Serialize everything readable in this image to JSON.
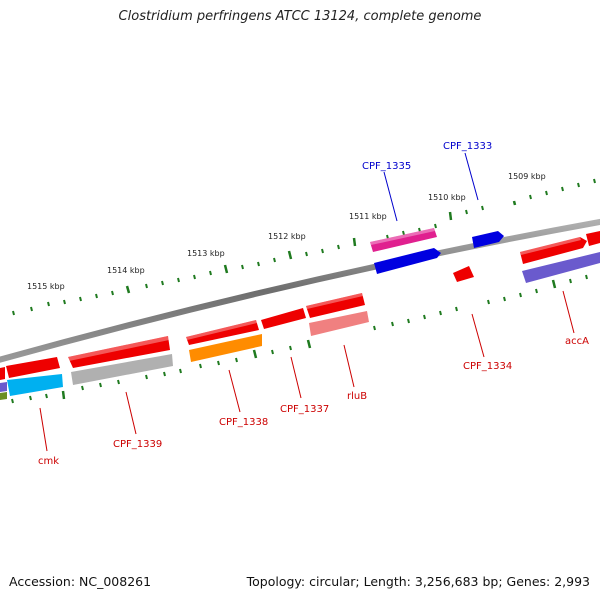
{
  "title": "Clostridium perfringens ATCC 13124, complete genome",
  "accession": "Accession: NC_008261",
  "topology": "Topology: circular; Length: 3,256,683 bp; Genes: 2,993",
  "colors": {
    "backbone": "#7a7a7a",
    "tick": "#1f7a1f",
    "label_forward": "#0000cc",
    "label_reverse": "#cc0000"
  },
  "tick_labels": [
    "1515 kbp",
    "1514 kbp",
    "1513 kbp",
    "1512 kbp",
    "1511 kbp",
    "1510 kbp",
    "1509 kbp"
  ],
  "genes_labels": [
    "CPF_1335",
    "CPF_1333",
    "CPF_1334",
    "accA",
    "rluB",
    "CPF_1337",
    "CPF_1338",
    "CPF_1339",
    "cmk"
  ]
}
